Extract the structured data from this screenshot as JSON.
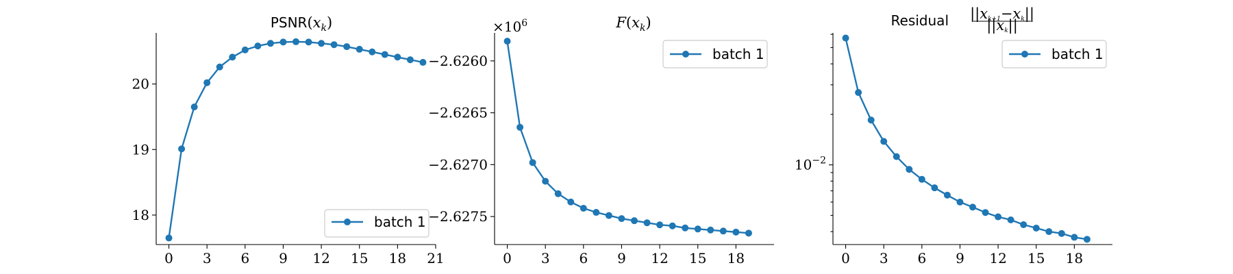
{
  "colors": {
    "series": "#1f77b4"
  },
  "chart_data": [
    {
      "type": "line",
      "title_parts": [
        "PSNR",
        "(",
        "x",
        "k",
        ")"
      ],
      "x": [
        0,
        1,
        2,
        3,
        4,
        5,
        6,
        7,
        8,
        9,
        10,
        11,
        12,
        13,
        14,
        15,
        16,
        17,
        18,
        19,
        20
      ],
      "series": [
        {
          "name": "batch 1",
          "values": [
            17.65,
            19.01,
            19.65,
            20.02,
            20.26,
            20.41,
            20.52,
            20.58,
            20.62,
            20.64,
            20.645,
            20.64,
            20.62,
            20.6,
            20.57,
            20.53,
            20.49,
            20.45,
            20.41,
            20.37,
            20.33
          ]
        }
      ],
      "xlim": [
        -1,
        21
      ],
      "ylim": [
        17.55,
        20.78
      ],
      "xticks": [
        "0",
        "3",
        "6",
        "9",
        "12",
        "15",
        "18",
        "21"
      ],
      "yticks": [
        "18",
        "19",
        "20"
      ],
      "legend": "lower-right"
    },
    {
      "type": "line",
      "title_parts": [
        "F",
        "(",
        "x",
        "k",
        ")"
      ],
      "offset_label": "×10",
      "offset_exp": "6",
      "x": [
        0,
        1,
        2,
        3,
        4,
        5,
        6,
        7,
        8,
        9,
        10,
        11,
        12,
        13,
        14,
        15,
        16,
        17,
        18,
        19
      ],
      "series": [
        {
          "name": "batch 1",
          "values": [
            -2.62581,
            -2.62664,
            -2.62698,
            -2.62716,
            -2.62728,
            -2.62736,
            -2.62742,
            -2.62746,
            -2.62749,
            -2.62752,
            -2.62754,
            -2.62756,
            -2.62758,
            -2.62759,
            -2.62761,
            -2.62762,
            -2.62763,
            -2.62764,
            -2.62765,
            -2.62766
          ]
        }
      ],
      "xlim": [
        -1,
        21
      ],
      "ylim": [
        -2.62777,
        -2.62573
      ],
      "xticks": [
        "0",
        "3",
        "6",
        "9",
        "12",
        "15",
        "18"
      ],
      "yticks": [
        "−2.6260",
        "−2.6265",
        "−2.6270",
        "−2.6275"
      ],
      "legend": "top-right"
    },
    {
      "type": "line",
      "title_parts": [
        "Residual",
        "||x",
        "k+1",
        "−x",
        "k",
        "||",
        "||x",
        "k",
        "||"
      ],
      "yscale": "log",
      "x": [
        0,
        1,
        2,
        3,
        4,
        5,
        6,
        7,
        8,
        9,
        10,
        11,
        12,
        13,
        14,
        15,
        16,
        17,
        18,
        19
      ],
      "series": [
        {
          "name": "batch 1",
          "values": [
            0.057,
            0.027,
            0.0185,
            0.0138,
            0.0112,
            0.0094,
            0.0082,
            0.0073,
            0.0066,
            0.006,
            0.0056,
            0.0052,
            0.0049,
            0.0047,
            0.0044,
            0.0042,
            0.004,
            0.0039,
            0.0037,
            0.0036
          ]
        }
      ],
      "xlim": [
        -1,
        21
      ],
      "ylim": [
        0.00335,
        0.0612
      ],
      "xticks": [
        "0",
        "3",
        "6",
        "9",
        "12",
        "15",
        "18"
      ],
      "yticks_log": [
        {
          "value": 0.01,
          "base": "10",
          "exp": "−2"
        }
      ],
      "legend": "top-right"
    }
  ]
}
